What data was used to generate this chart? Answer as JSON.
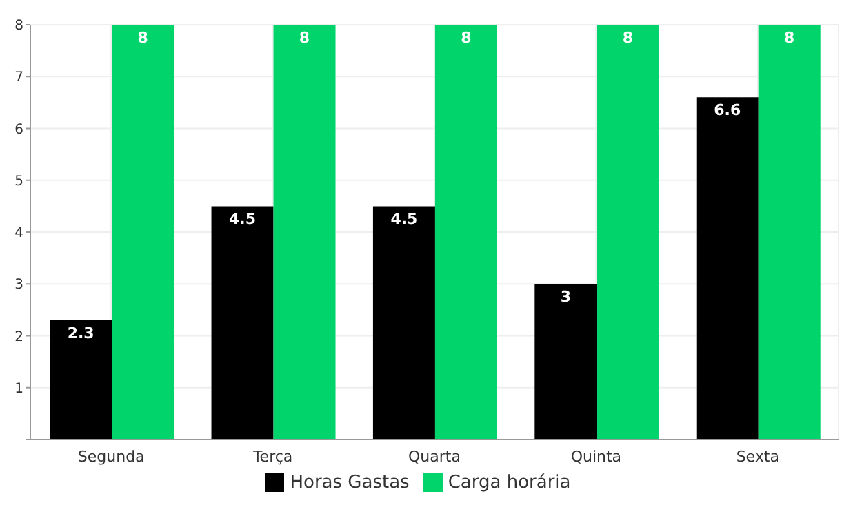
{
  "chart_data": {
    "type": "bar",
    "categories": [
      "Segunda",
      "Terça",
      "Quarta",
      "Quinta",
      "Sexta"
    ],
    "series": [
      {
        "name": "Horas Gastas",
        "color": "#000000",
        "values": [
          2.3,
          4.5,
          4.5,
          3,
          6.6
        ]
      },
      {
        "name": "Carga horária",
        "color": "#00d46a",
        "values": [
          8,
          8,
          8,
          8,
          8
        ]
      }
    ],
    "ylim": [
      0,
      8
    ],
    "yticks": [
      {
        "value": 0,
        "label": null
      },
      1,
      2,
      3,
      4,
      5,
      6,
      7,
      8
    ],
    "grid": true,
    "legend": "bottom",
    "data_labels": true
  }
}
